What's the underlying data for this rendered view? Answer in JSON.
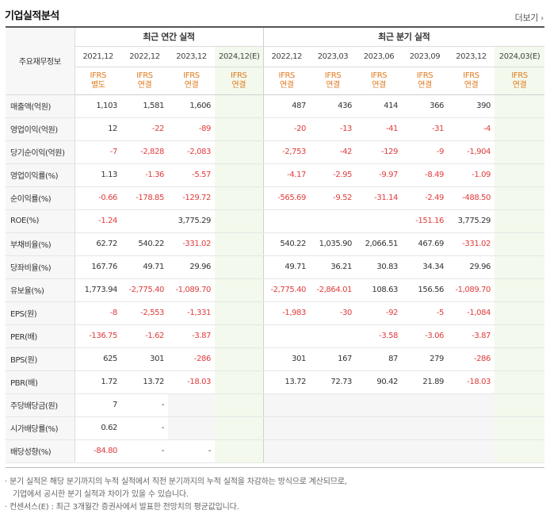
{
  "header": {
    "title": "기업실적분석",
    "more_label": "더보기"
  },
  "table": {
    "corner_label": "주요재무정보",
    "group_annual": "최근 연간 실적",
    "group_quarter": "최근 분기 실적",
    "periods": [
      "2021,12",
      "2022,12",
      "2023,12",
      "2024,12(E)",
      "2022,12",
      "2023,03",
      "2023,06",
      "2023,09",
      "2023,12",
      "2024,03(E)"
    ],
    "standards": [
      [
        "IFRS",
        "별도"
      ],
      [
        "IFRS",
        "연결"
      ],
      [
        "IFRS",
        "연결"
      ],
      [
        "IFRS",
        "연결"
      ],
      [
        "IFRS",
        "연결"
      ],
      [
        "IFRS",
        "연결"
      ],
      [
        "IFRS",
        "연결"
      ],
      [
        "IFRS",
        "연결"
      ],
      [
        "IFRS",
        "연결"
      ],
      [
        "IFRS",
        "연결"
      ]
    ],
    "rows": [
      {
        "label": "매출액(억원)",
        "values": [
          "1,103",
          "1,581",
          "1,606",
          "",
          "487",
          "436",
          "414",
          "366",
          "390",
          ""
        ]
      },
      {
        "label": "영업이익(억원)",
        "values": [
          "12",
          "-22",
          "-89",
          "",
          "-20",
          "-13",
          "-41",
          "-31",
          "-4",
          ""
        ]
      },
      {
        "label": "당기순이익(억원)",
        "values": [
          "-7",
          "-2,828",
          "-2,083",
          "",
          "-2,753",
          "-42",
          "-129",
          "-9",
          "-1,904",
          ""
        ]
      },
      {
        "label": "영업이익률(%)",
        "values": [
          "1.13",
          "-1.36",
          "-5.57",
          "",
          "-4.17",
          "-2.95",
          "-9.97",
          "-8.49",
          "-1.09",
          ""
        ]
      },
      {
        "label": "순이익률(%)",
        "values": [
          "-0.66",
          "-178.85",
          "-129.72",
          "",
          "-565.69",
          "-9.52",
          "-31.14",
          "-2.49",
          "-488.50",
          ""
        ]
      },
      {
        "label": "ROE(%)",
        "values": [
          "-1.24",
          "",
          "3,775.29",
          "",
          "",
          "",
          "",
          "-151.16",
          "3,775.29",
          ""
        ]
      },
      {
        "label": "부채비율(%)",
        "values": [
          "62.72",
          "540.22",
          "-331.02",
          "",
          "540.22",
          "1,035.90",
          "2,066.51",
          "467.69",
          "-331.02",
          ""
        ]
      },
      {
        "label": "당좌비율(%)",
        "values": [
          "167.76",
          "49.71",
          "29.96",
          "",
          "49.71",
          "36.21",
          "30.83",
          "34.34",
          "29.96",
          ""
        ]
      },
      {
        "label": "유보율(%)",
        "values": [
          "1,773.94",
          "-2,775.40",
          "-1,089.70",
          "",
          "-2,775.40",
          "-2,864.01",
          "108.63",
          "156.56",
          "-1,089.70",
          ""
        ]
      },
      {
        "label": "EPS(원)",
        "values": [
          "-8",
          "-2,553",
          "-1,331",
          "",
          "-1,983",
          "-30",
          "-92",
          "-5",
          "-1,084",
          ""
        ]
      },
      {
        "label": "PER(배)",
        "values": [
          "-136.75",
          "-1.62",
          "-3.87",
          "",
          "",
          "",
          "-3.58",
          "-3.06",
          "-3.87",
          ""
        ]
      },
      {
        "label": "BPS(원)",
        "values": [
          "625",
          "301",
          "-286",
          "",
          "301",
          "167",
          "87",
          "279",
          "-286",
          ""
        ]
      },
      {
        "label": "PBR(배)",
        "values": [
          "1.72",
          "13.72",
          "-18.03",
          "",
          "13.72",
          "72.73",
          "90.42",
          "21.89",
          "-18.03",
          ""
        ]
      },
      {
        "label": "주당배당금(원)",
        "values": [
          "7",
          "-",
          "",
          "",
          "",
          "",
          "",
          "",
          "",
          ""
        ]
      },
      {
        "label": "시가배당률(%)",
        "values": [
          "0.62",
          "-",
          "",
          "",
          "",
          "",
          "",
          "",
          "",
          ""
        ]
      },
      {
        "label": "배당성향(%)",
        "values": [
          "-84.80",
          "-",
          "-",
          "",
          "",
          "",
          "",
          "",
          "",
          ""
        ]
      }
    ]
  },
  "notes": {
    "line1": "· 분기 실적은 해당 분기까지의 누적 실적에서 직전 분기까지의 누적 실적을 차감하는 방식으로 계산되므로,",
    "line2": "기업에서 공시한 분기 실적과 차이가 있을 수 있습니다.",
    "line3": "· 컨센서스(E) : 최근 3개월간 증권사에서 발표한 전망치의 평균값입니다."
  },
  "colors": {
    "ifrs_label": "#e07a1f",
    "negative": "#e03b3b",
    "estimate_bg": "#f3f9ec"
  }
}
